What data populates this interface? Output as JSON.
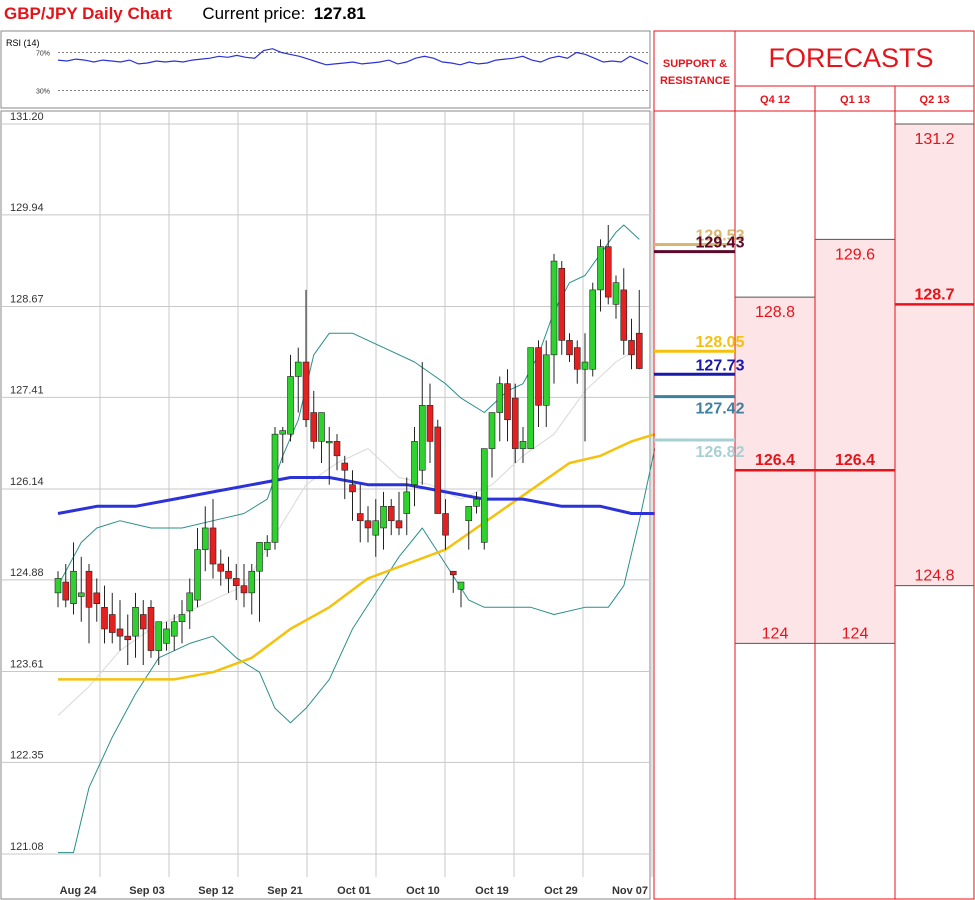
{
  "header": {
    "title": "GBP/JPY Daily Chart",
    "price_label": "Current price:",
    "price_value": "127.81"
  },
  "rsi": {
    "label": "RSI (14)",
    "level_high": 70,
    "level_low": 30,
    "level_high_label": "70%",
    "level_low_label": "30%",
    "values": [
      62,
      61,
      63,
      62,
      60,
      62,
      61,
      60,
      62,
      58,
      59,
      61,
      60,
      61,
      60,
      62,
      63,
      64,
      66,
      65,
      67,
      65,
      64,
      72,
      74,
      70,
      68,
      66,
      63,
      60,
      57,
      58,
      59,
      60,
      58,
      59,
      60,
      62,
      58,
      60,
      64,
      66,
      64,
      60,
      59,
      57,
      60,
      58,
      59,
      62,
      63,
      64,
      66,
      62,
      60,
      64,
      66,
      64,
      70,
      68,
      64,
      60,
      61,
      60,
      66,
      62,
      58
    ]
  },
  "chart_data": {
    "type": "candlestick",
    "y_ticks": [
      "131.20",
      "129.94",
      "128.67",
      "127.41",
      "126.14",
      "124.88",
      "123.61",
      "122.35",
      "121.08"
    ],
    "ylim": [
      121.08,
      131.2
    ],
    "x_labels": [
      "Aug 24",
      "Sep 03",
      "Sep 12",
      "Sep 21",
      "Oct 01",
      "Oct 10",
      "Oct 19",
      "Oct 29",
      "Nov 07"
    ],
    "grid": true,
    "candles": [
      {
        "o": 124.7,
        "h": 125.0,
        "l": 124.5,
        "c": 124.9
      },
      {
        "o": 124.85,
        "h": 125.1,
        "l": 124.5,
        "c": 124.6
      },
      {
        "o": 124.55,
        "h": 125.4,
        "l": 124.4,
        "c": 125.0
      },
      {
        "o": 124.65,
        "h": 125.2,
        "l": 124.3,
        "c": 124.7
      },
      {
        "o": 125.0,
        "h": 125.1,
        "l": 124.0,
        "c": 124.5
      },
      {
        "o": 124.7,
        "h": 124.9,
        "l": 124.3,
        "c": 124.55
      },
      {
        "o": 124.5,
        "h": 124.8,
        "l": 124.0,
        "c": 124.2
      },
      {
        "o": 124.4,
        "h": 124.7,
        "l": 124.0,
        "c": 124.15
      },
      {
        "o": 124.2,
        "h": 124.6,
        "l": 123.9,
        "c": 124.1
      },
      {
        "o": 124.1,
        "h": 124.4,
        "l": 123.7,
        "c": 124.05
      },
      {
        "o": 124.1,
        "h": 124.7,
        "l": 123.8,
        "c": 124.5
      },
      {
        "o": 124.4,
        "h": 124.6,
        "l": 123.7,
        "c": 124.2
      },
      {
        "o": 124.5,
        "h": 124.6,
        "l": 123.8,
        "c": 123.9
      },
      {
        "o": 123.9,
        "h": 124.3,
        "l": 123.7,
        "c": 124.3
      },
      {
        "o": 124.0,
        "h": 124.3,
        "l": 123.9,
        "c": 124.2
      },
      {
        "o": 124.1,
        "h": 124.4,
        "l": 123.9,
        "c": 124.3
      },
      {
        "o": 124.3,
        "h": 124.6,
        "l": 124.0,
        "c": 124.4
      },
      {
        "o": 124.45,
        "h": 124.9,
        "l": 124.2,
        "c": 124.7
      },
      {
        "o": 124.6,
        "h": 125.6,
        "l": 124.5,
        "c": 125.3
      },
      {
        "o": 125.3,
        "h": 125.9,
        "l": 125.0,
        "c": 125.6
      },
      {
        "o": 125.6,
        "h": 126.0,
        "l": 124.9,
        "c": 125.1
      },
      {
        "o": 125.1,
        "h": 125.3,
        "l": 124.8,
        "c": 125.0
      },
      {
        "o": 125.0,
        "h": 125.2,
        "l": 124.7,
        "c": 124.9
      },
      {
        "o": 124.9,
        "h": 125.1,
        "l": 124.6,
        "c": 124.8
      },
      {
        "o": 124.8,
        "h": 125.1,
        "l": 124.5,
        "c": 124.7
      },
      {
        "o": 124.7,
        "h": 125.1,
        "l": 124.4,
        "c": 125.0
      },
      {
        "o": 125.0,
        "h": 125.4,
        "l": 124.3,
        "c": 125.4
      },
      {
        "o": 125.3,
        "h": 125.5,
        "l": 125.2,
        "c": 125.4
      },
      {
        "o": 125.4,
        "h": 127.0,
        "l": 125.3,
        "c": 126.9
      },
      {
        "o": 126.9,
        "h": 127.0,
        "l": 126.5,
        "c": 126.95
      },
      {
        "o": 126.9,
        "h": 128.0,
        "l": 126.8,
        "c": 127.7
      },
      {
        "o": 127.7,
        "h": 128.1,
        "l": 127.2,
        "c": 127.9
      },
      {
        "o": 127.9,
        "h": 128.9,
        "l": 127.0,
        "c": 127.1
      },
      {
        "o": 127.2,
        "h": 127.5,
        "l": 126.7,
        "c": 126.8
      },
      {
        "o": 126.8,
        "h": 127.2,
        "l": 126.5,
        "c": 127.2
      },
      {
        "o": 126.8,
        "h": 127.0,
        "l": 126.2,
        "c": 126.8
      },
      {
        "o": 126.8,
        "h": 126.9,
        "l": 126.4,
        "c": 126.6
      },
      {
        "o": 126.5,
        "h": 126.6,
        "l": 126.0,
        "c": 126.4
      },
      {
        "o": 126.2,
        "h": 126.4,
        "l": 125.7,
        "c": 126.1
      },
      {
        "o": 125.8,
        "h": 126.2,
        "l": 125.4,
        "c": 125.7
      },
      {
        "o": 125.7,
        "h": 125.9,
        "l": 125.4,
        "c": 125.6
      },
      {
        "o": 125.5,
        "h": 126.0,
        "l": 125.2,
        "c": 125.7
      },
      {
        "o": 125.6,
        "h": 126.1,
        "l": 125.3,
        "c": 125.9
      },
      {
        "o": 125.9,
        "h": 126.0,
        "l": 125.5,
        "c": 125.7
      },
      {
        "o": 125.7,
        "h": 126.1,
        "l": 125.5,
        "c": 125.6
      },
      {
        "o": 125.8,
        "h": 126.3,
        "l": 125.5,
        "c": 126.1
      },
      {
        "o": 126.2,
        "h": 127.0,
        "l": 125.9,
        "c": 126.8
      },
      {
        "o": 126.4,
        "h": 127.9,
        "l": 126.2,
        "c": 127.3
      },
      {
        "o": 127.3,
        "h": 127.6,
        "l": 126.5,
        "c": 126.8
      },
      {
        "o": 127.0,
        "h": 127.1,
        "l": 125.8,
        "c": 125.8
      },
      {
        "o": 125.8,
        "h": 126.0,
        "l": 125.3,
        "c": 125.5
      },
      {
        "o": 125.0,
        "h": 125.0,
        "l": 124.7,
        "c": 124.95
      },
      {
        "o": 124.75,
        "h": 124.8,
        "l": 124.5,
        "c": 124.85
      },
      {
        "o": 125.7,
        "h": 125.9,
        "l": 125.3,
        "c": 125.9
      },
      {
        "o": 125.9,
        "h": 126.1,
        "l": 125.8,
        "c": 126.0
      },
      {
        "o": 125.4,
        "h": 126.7,
        "l": 125.3,
        "c": 126.7
      },
      {
        "o": 126.7,
        "h": 127.2,
        "l": 126.3,
        "c": 127.2
      },
      {
        "o": 127.2,
        "h": 127.7,
        "l": 126.8,
        "c": 127.6
      },
      {
        "o": 127.6,
        "h": 127.8,
        "l": 126.8,
        "c": 127.1
      },
      {
        "o": 127.4,
        "h": 127.6,
        "l": 126.5,
        "c": 126.7
      },
      {
        "o": 126.7,
        "h": 127.0,
        "l": 126.5,
        "c": 126.8
      },
      {
        "o": 126.7,
        "h": 128.1,
        "l": 126.7,
        "c": 128.1
      },
      {
        "o": 128.1,
        "h": 128.2,
        "l": 127.0,
        "c": 127.3
      },
      {
        "o": 127.3,
        "h": 128.2,
        "l": 127.0,
        "c": 128.0
      },
      {
        "o": 128.0,
        "h": 129.4,
        "l": 127.6,
        "c": 129.3
      },
      {
        "o": 129.2,
        "h": 129.3,
        "l": 128.0,
        "c": 128.2
      },
      {
        "o": 128.2,
        "h": 128.3,
        "l": 127.9,
        "c": 128.0
      },
      {
        "o": 128.1,
        "h": 128.2,
        "l": 127.6,
        "c": 127.8
      },
      {
        "o": 127.8,
        "h": 128.3,
        "l": 126.8,
        "c": 127.9
      },
      {
        "o": 127.8,
        "h": 129.0,
        "l": 127.7,
        "c": 128.9
      },
      {
        "o": 128.9,
        "h": 129.6,
        "l": 128.6,
        "c": 129.5
      },
      {
        "o": 129.5,
        "h": 129.8,
        "l": 128.7,
        "c": 128.8
      },
      {
        "o": 128.7,
        "h": 129.1,
        "l": 128.5,
        "c": 129.0
      },
      {
        "o": 128.9,
        "h": 129.2,
        "l": 128.0,
        "c": 128.2
      },
      {
        "o": 128.2,
        "h": 128.5,
        "l": 127.8,
        "c": 128.0
      },
      {
        "o": 128.3,
        "h": 128.9,
        "l": 127.8,
        "c": 127.81
      }
    ],
    "overlays": [
      {
        "name": "ma_fast",
        "color": "#d8d8d8",
        "width": 1,
        "points": [
          [
            0,
            123.0
          ],
          [
            4,
            123.4
          ],
          [
            8,
            123.9
          ],
          [
            12,
            124.2
          ],
          [
            16,
            124.4
          ],
          [
            20,
            124.6
          ],
          [
            24,
            124.8
          ],
          [
            28,
            125.5
          ],
          [
            32,
            126.2
          ],
          [
            36,
            126.5
          ],
          [
            40,
            126.7
          ],
          [
            44,
            126.3
          ],
          [
            48,
            126.2
          ],
          [
            52,
            126.0
          ],
          [
            56,
            126.2
          ],
          [
            60,
            126.6
          ],
          [
            64,
            126.9
          ],
          [
            68,
            127.5
          ],
          [
            72,
            127.9
          ],
          [
            75,
            128.1
          ]
        ]
      },
      {
        "name": "bb_upper",
        "color": "#2a8f8a",
        "width": 1,
        "points": [
          [
            0,
            124.8
          ],
          [
            3,
            125.4
          ],
          [
            5,
            125.6
          ],
          [
            8,
            125.7
          ],
          [
            12,
            125.6
          ],
          [
            16,
            125.6
          ],
          [
            20,
            125.7
          ],
          [
            24,
            125.8
          ],
          [
            27,
            126.0
          ],
          [
            29,
            126.6
          ],
          [
            31,
            127.1
          ],
          [
            33,
            128.0
          ],
          [
            35,
            128.3
          ],
          [
            38,
            128.3
          ],
          [
            42,
            128.1
          ],
          [
            46,
            127.9
          ],
          [
            50,
            127.6
          ],
          [
            52,
            127.4
          ],
          [
            55,
            127.2
          ],
          [
            58,
            127.5
          ],
          [
            60,
            127.6
          ],
          [
            62,
            128.0
          ],
          [
            64,
            128.6
          ],
          [
            66,
            129.0
          ],
          [
            68,
            129.1
          ],
          [
            70,
            129.4
          ],
          [
            72,
            129.7
          ],
          [
            73,
            129.8
          ],
          [
            75,
            129.6
          ]
        ]
      },
      {
        "name": "bb_lower",
        "color": "#2a8f8a",
        "width": 1,
        "points": [
          [
            0,
            121.1
          ],
          [
            2,
            121.1
          ],
          [
            4,
            122.0
          ],
          [
            7,
            122.7
          ],
          [
            10,
            123.3
          ],
          [
            13,
            123.8
          ],
          [
            17,
            124.0
          ],
          [
            20,
            124.1
          ],
          [
            23,
            123.8
          ],
          [
            26,
            123.6
          ],
          [
            28,
            123.1
          ],
          [
            30,
            122.9
          ],
          [
            32,
            123.1
          ],
          [
            35,
            123.5
          ],
          [
            38,
            124.2
          ],
          [
            41,
            124.7
          ],
          [
            44,
            125.2
          ],
          [
            47,
            125.6
          ],
          [
            50,
            125.1
          ],
          [
            53,
            124.6
          ],
          [
            55,
            124.5
          ],
          [
            58,
            124.5
          ],
          [
            61,
            124.5
          ],
          [
            64,
            124.4
          ],
          [
            68,
            124.5
          ],
          [
            71,
            124.5
          ],
          [
            73,
            124.8
          ],
          [
            75,
            125.7
          ],
          [
            77,
            126.7
          ]
        ]
      },
      {
        "name": "ma_mid",
        "color": "#f4c20d",
        "width": 2.5,
        "points": [
          [
            0,
            123.5
          ],
          [
            3,
            123.5
          ],
          [
            7,
            123.5
          ],
          [
            11,
            123.5
          ],
          [
            15,
            123.5
          ],
          [
            20,
            123.6
          ],
          [
            25,
            123.8
          ],
          [
            30,
            124.2
          ],
          [
            35,
            124.5
          ],
          [
            40,
            124.9
          ],
          [
            45,
            125.1
          ],
          [
            50,
            125.3
          ],
          [
            54,
            125.6
          ],
          [
            58,
            125.9
          ],
          [
            62,
            126.2
          ],
          [
            66,
            126.5
          ],
          [
            70,
            126.6
          ],
          [
            74,
            126.8
          ],
          [
            77,
            126.9
          ]
        ]
      },
      {
        "name": "ma_slow",
        "color": "#2b32d8",
        "width": 3,
        "points": [
          [
            0,
            125.8
          ],
          [
            5,
            125.9
          ],
          [
            10,
            125.9
          ],
          [
            15,
            126.0
          ],
          [
            20,
            126.1
          ],
          [
            25,
            126.2
          ],
          [
            30,
            126.3
          ],
          [
            35,
            126.3
          ],
          [
            40,
            126.2
          ],
          [
            45,
            126.2
          ],
          [
            50,
            126.1
          ],
          [
            55,
            126.0
          ],
          [
            60,
            126.0
          ],
          [
            65,
            125.9
          ],
          [
            70,
            125.9
          ],
          [
            74,
            125.8
          ],
          [
            77,
            125.8
          ]
        ]
      }
    ]
  },
  "support_resistance": {
    "header": "SUPPORT & RESISTANCE",
    "levels": [
      {
        "value": 129.53,
        "label": "129.53",
        "color": "#d8b870"
      },
      {
        "value": 129.43,
        "label": "129.43",
        "color": "#5a0a2a"
      },
      {
        "value": 128.05,
        "label": "128.05",
        "color": "#f4c20d"
      },
      {
        "value": 127.73,
        "label": "127.73",
        "color": "#1a1aaa"
      },
      {
        "value": 127.42,
        "label": "127.42",
        "color": "#3f7f9f"
      },
      {
        "value": 126.82,
        "label": "126.82",
        "color": "#a8d0d4"
      }
    ]
  },
  "forecasts": {
    "title": "FORECASTS",
    "columns": [
      {
        "period": "Q4 12",
        "high": 128.8,
        "mid": 126.4,
        "low": 124,
        "high_label": "128.8",
        "mid_label": "126.4",
        "low_label": "124"
      },
      {
        "period": "Q1 13",
        "high": 129.6,
        "mid": 126.4,
        "low": 124,
        "high_label": "129.6",
        "mid_label": "126.4",
        "low_label": "124"
      },
      {
        "period": "Q2 13",
        "high": 131.2,
        "mid": 128.7,
        "low": 124.8,
        "high_label": "131.2",
        "mid_label": "128.7",
        "low_label": "124.8"
      }
    ]
  },
  "colors": {
    "bull": "#2ed12e",
    "bear": "#e52020",
    "forecast_red": "#e4141b",
    "forecast_fill": "#fde4e6",
    "grid": "#c8c8c8"
  }
}
